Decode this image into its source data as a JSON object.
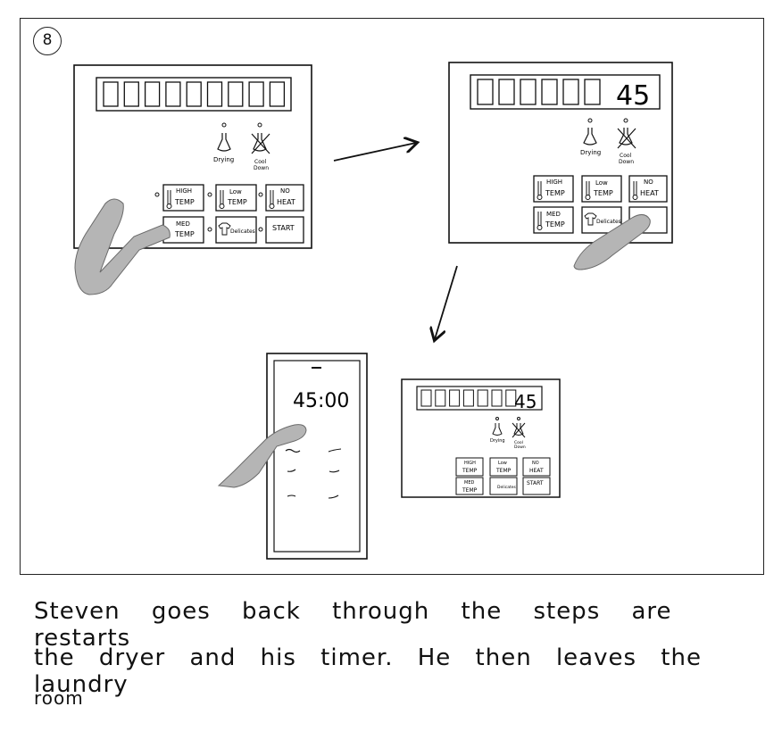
{
  "storyboard": {
    "step_number": "8",
    "caption_lines": [
      "Steven goes back through the steps are restarts",
      "the dryer and his timer. He then leaves the laundry",
      "room"
    ]
  },
  "dryer_panel": {
    "display_values": [
      "",
      "45",
      "45"
    ],
    "indicators": {
      "drying": "Drying",
      "cool": "Cool",
      "down": "Down"
    },
    "buttons": {
      "high_temp": [
        "HIGH",
        "TEMP"
      ],
      "low_temp": [
        "Low",
        "TEMP"
      ],
      "no_heat": [
        "NO",
        "HEAT"
      ],
      "med_temp": [
        "MED",
        "TEMP"
      ],
      "delicates": "Delicates",
      "start": "START"
    }
  },
  "phone": {
    "timer": "45:00"
  },
  "colors": {
    "ink": "#111111",
    "hand": "#b5b5b5",
    "hand_stroke": "#6a6a6a"
  }
}
